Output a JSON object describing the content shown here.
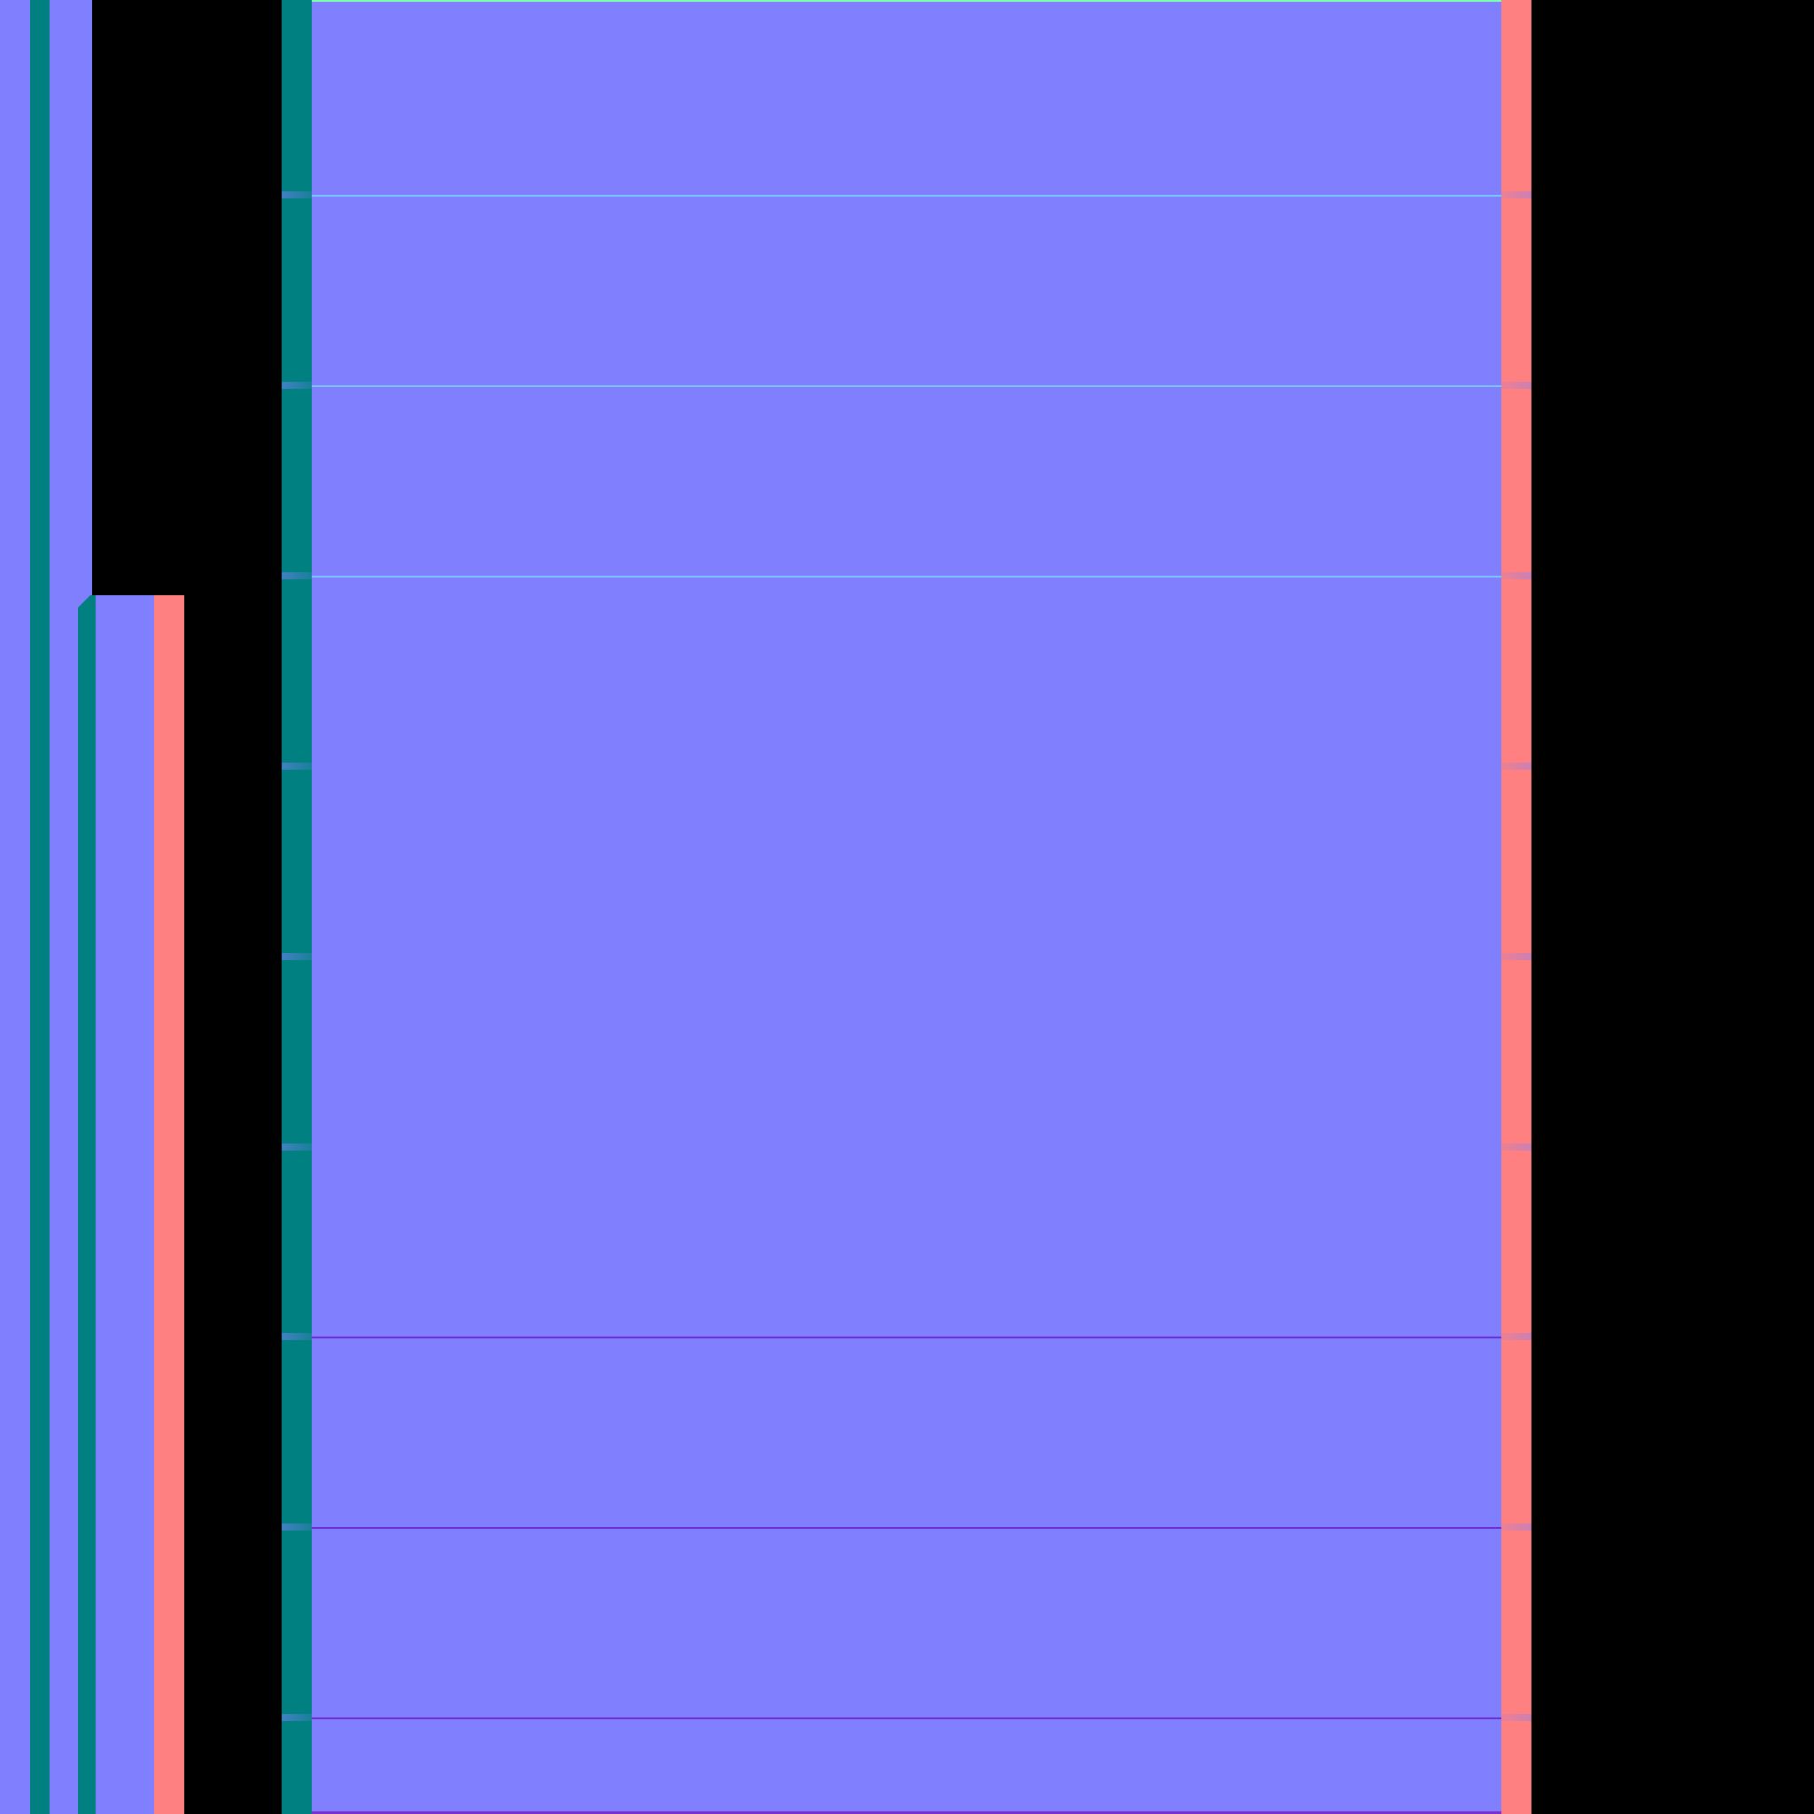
{
  "canvas": {
    "background_color": "#000000"
  },
  "palette": {
    "blue_fill": "#8080ff",
    "teal_rail": "#008080",
    "salmon_rail": "#ff8080",
    "top_edge": "#7fffb0",
    "upper_divider": "#77c8ff",
    "lower_divider": "#6d2bd6"
  },
  "structure": {
    "left_column_present": true,
    "lower_left_pillar_present": true,
    "main_panel_present": true,
    "divider_count": 6,
    "notch_count": 9
  }
}
